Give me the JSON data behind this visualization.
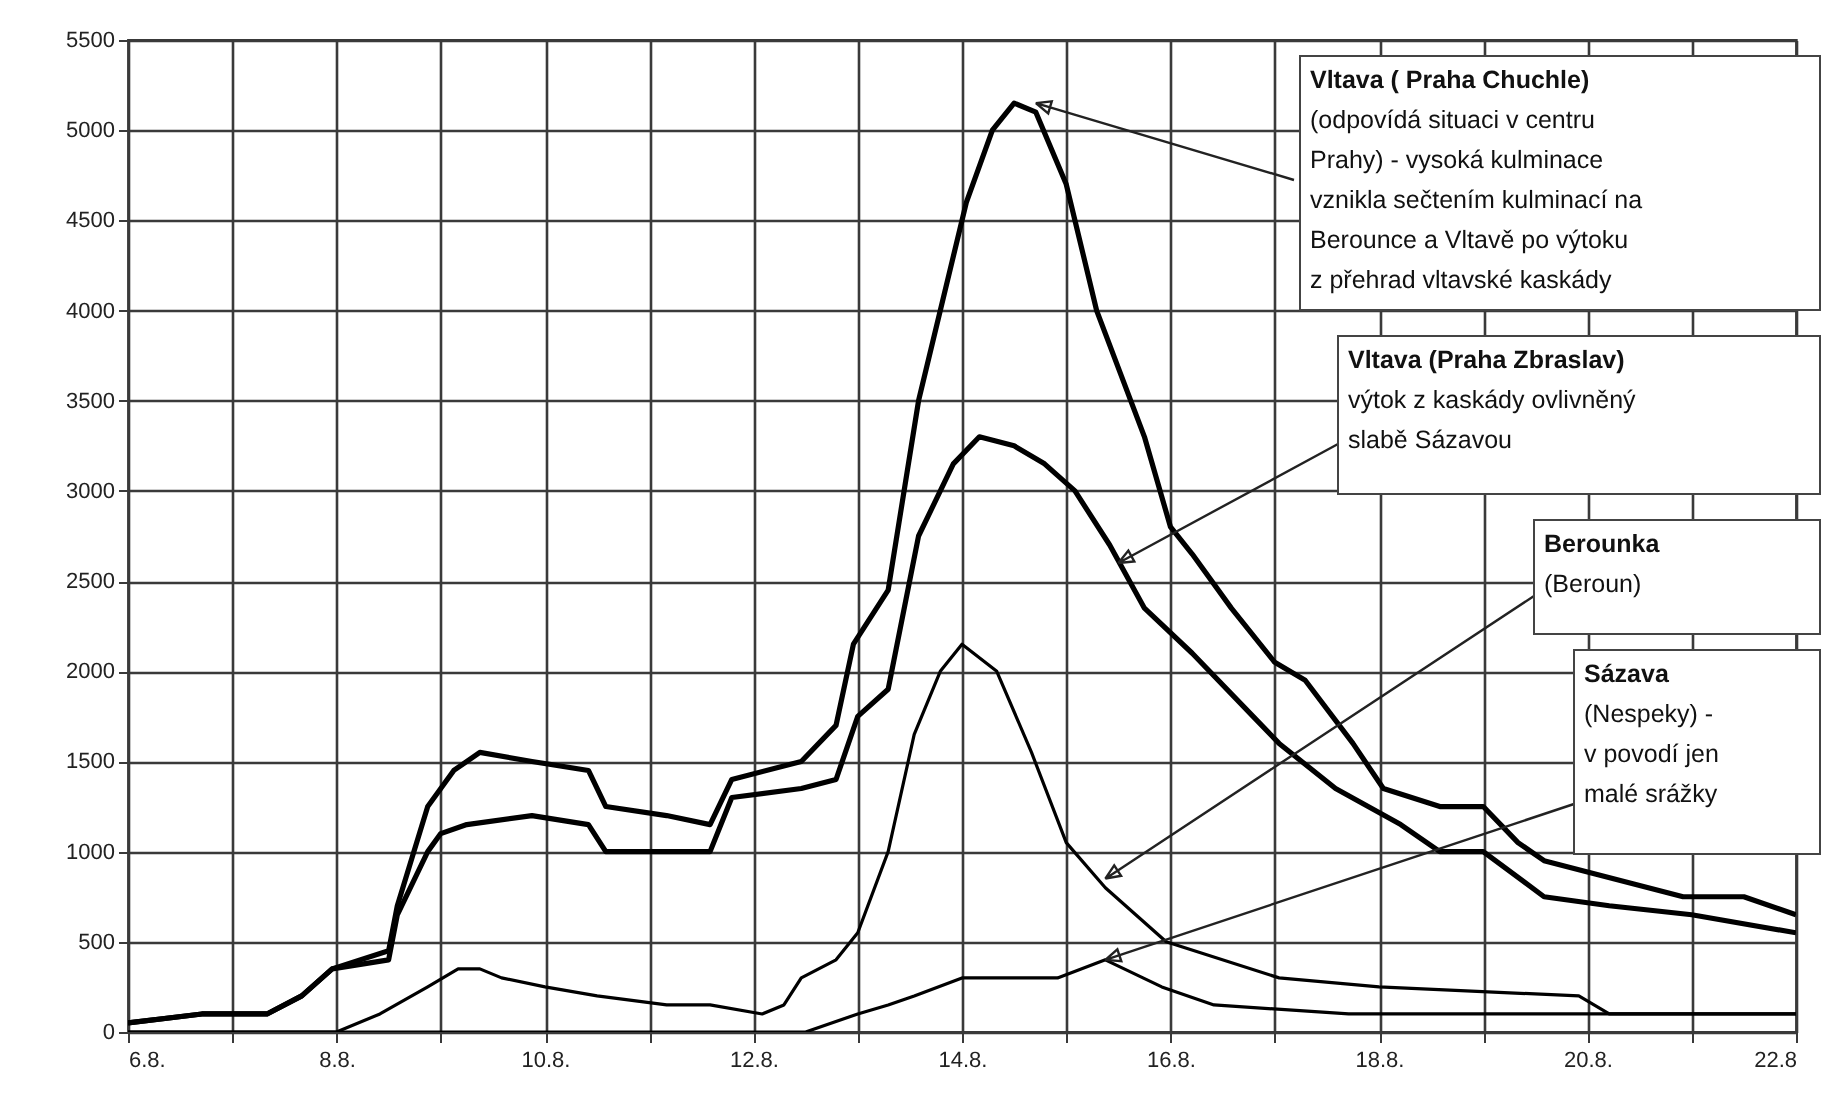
{
  "chart_data": {
    "type": "line",
    "xlim": [
      "--08-06",
      "--08-22"
    ],
    "ylim": [
      0,
      5500
    ],
    "xticks": [
      {
        "value": "--08-06",
        "label": "6.8."
      },
      {
        "value": "--08-07",
        "label": null
      },
      {
        "value": "--08-08",
        "label": "8.8."
      },
      {
        "value": "--08-09",
        "label": null
      },
      {
        "value": "--08-10",
        "label": "10.8."
      },
      {
        "value": "--08-11",
        "label": null
      },
      {
        "value": "--08-12",
        "label": "12.8."
      },
      {
        "value": "--08-13",
        "label": null
      },
      {
        "value": "--08-14",
        "label": "14.8."
      },
      {
        "value": "--08-15",
        "label": null
      },
      {
        "value": "--08-16",
        "label": "16.8."
      },
      {
        "value": "--08-17",
        "label": null
      },
      {
        "value": "--08-18",
        "label": "18.8."
      },
      {
        "value": "--08-19",
        "label": null
      },
      {
        "value": "--08-20",
        "label": "20.8."
      },
      {
        "value": "--08-21",
        "label": null
      },
      {
        "value": "--08-22",
        "label": "22.8"
      }
    ],
    "yticks": [
      0,
      500,
      1000,
      1500,
      2000,
      2500,
      3000,
      3500,
      4000,
      4500,
      5000,
      5500
    ],
    "grid": true,
    "marker": "none",
    "line_style": "solid",
    "series": [
      {
        "color": "#000000",
        "x": [
          "--08-06",
          "--08-06T17:00",
          "--08-07",
          "--08-07T08:00",
          "--08-07T16:00",
          "--08-07T23:00",
          "--08-08T12:00",
          "--08-08T14:00",
          "--08-08T21:00",
          "--08-09T03:00",
          "--08-09T09:00",
          "--08-09T21:00",
          "--08-10T10:00",
          "--08-10T14:00",
          "--08-11T04:00",
          "--08-11T14:00",
          "--08-11T19:00",
          "--08-12T11:00",
          "--08-12T19:00",
          "--08-12T23:00",
          "--08-13T07:00",
          "--08-13T14:00",
          "--08-14T01:00",
          "--08-14T07:00",
          "--08-14T12:00",
          "--08-14T17:00",
          "--08-15",
          "--08-15T07:00",
          "--08-15T18:00",
          "--08-16",
          "--08-16T05:00",
          "--08-16T14:00",
          "--08-17",
          "--08-17T07:00",
          "--08-17T18:00",
          "--08-18T01:00",
          "--08-18T14:00",
          "--08-19",
          "--08-19T08:00",
          "--08-19T14:00",
          "--08-20T06:00",
          "--08-20T22:00",
          "--08-21T12:00",
          "--08-22"
        ],
        "values": [
          50,
          100,
          100,
          100,
          200,
          350,
          450,
          700,
          1250,
          1450,
          1550,
          1500,
          1450,
          1250,
          1200,
          1150,
          1400,
          1500,
          1700,
          2150,
          2450,
          3500,
          4600,
          5000,
          5150,
          5100,
          4700,
          4000,
          3300,
          2800,
          2650,
          2350,
          2050,
          1950,
          1600,
          1350,
          1250,
          1250,
          1050,
          950,
          850,
          750,
          750,
          650
        ]
      },
      {
        "color": "#000000",
        "x": [
          "--08-06",
          "--08-06T17:00",
          "--08-07",
          "--08-07T08:00",
          "--08-07T16:00",
          "--08-07T23:00",
          "--08-08T12:00",
          "--08-08T14:00",
          "--08-08T21:00",
          "--08-09",
          "--08-09T06:00",
          "--08-09T21:00",
          "--08-10T10:00",
          "--08-10T14:00",
          "--08-11T04:00",
          "--08-11T14:00",
          "--08-11T19:00",
          "--08-12T11:00",
          "--08-12T19:00",
          "--08-13",
          "--08-13T07:00",
          "--08-13T14:00",
          "--08-13T22:00",
          "--08-14T04:00",
          "--08-14T12:00",
          "--08-14T19:00",
          "--08-15T02:00",
          "--08-15T10:00",
          "--08-15T18:00",
          "--08-16T05:00",
          "--08-16T19:00",
          "--08-17T01:00",
          "--08-17T14:00",
          "--08-18T05:00",
          "--08-18T14:00",
          "--08-19",
          "--08-19T14:00",
          "--08-20T05:00",
          "--08-21",
          "--08-22"
        ],
        "values": [
          50,
          100,
          100,
          100,
          200,
          350,
          400,
          650,
          1000,
          1100,
          1150,
          1200,
          1150,
          1000,
          1000,
          1000,
          1300,
          1350,
          1400,
          1750,
          1900,
          2750,
          3150,
          3300,
          3250,
          3150,
          3000,
          2700,
          2350,
          2100,
          1750,
          1600,
          1350,
          1150,
          1000,
          1000,
          750,
          700,
          650,
          550
        ]
      },
      {
        "color": "#000000",
        "x": [
          "--08-06",
          "--08-08",
          "--08-08T10:00",
          "--08-08T21:00",
          "--08-09T04:00",
          "--08-09T09:00",
          "--08-09T14:00",
          "--08-10",
          "--08-10T12:00",
          "--08-11T04:00",
          "--08-11T14:00",
          "--08-12T02:00",
          "--08-12T07:00",
          "--08-12T11:00",
          "--08-12T19:00",
          "--08-13",
          "--08-13T07:00",
          "--08-13T13:00",
          "--08-13T19:00",
          "--08-14",
          "--08-14T08:00",
          "--08-14T16:00",
          "--08-15",
          "--08-15T09:00",
          "--08-15T23:00",
          "--08-17T01:00",
          "--08-18",
          "--08-19T22:00",
          "--08-20T05:00",
          "--08-22"
        ],
        "values": [
          0,
          0,
          100,
          250,
          350,
          350,
          300,
          250,
          200,
          150,
          150,
          100,
          150,
          300,
          400,
          550,
          1000,
          1650,
          2000,
          2150,
          2000,
          1550,
          1050,
          800,
          500,
          300,
          250,
          200,
          100,
          100
        ]
      },
      {
        "color": "#000000",
        "x": [
          "--08-06",
          "--08-12T02:00",
          "--08-12T12:00",
          "--08-13",
          "--08-13T07:00",
          "--08-13T13:00",
          "--08-14",
          "--08-14T22:00",
          "--08-15T09:00",
          "--08-15T22:00",
          "--08-16T10:00",
          "--08-17T17:00",
          "--08-19T14:00",
          "--08-22"
        ],
        "values": [
          0,
          0,
          0,
          100,
          150,
          200,
          300,
          300,
          400,
          250,
          150,
          100,
          100,
          100
        ]
      }
    ],
    "annotations": [
      {
        "text": "Vltava ( Praha Chuchle)\n(odpovídá situaci v centru\nPrahy)  - vysoká kulminace\nvznikla sečtením kulminací na\nBerounce a Vltavě po výtoku\nz přehrad vltavské kaskády",
        "x": "--08-14T17:00",
        "y": 5150
      },
      {
        "text": "Vltava (Praha Zbraslav)\nvýtok z kaskády ovlivněný\nslabě Sázavou",
        "x": "--08-15T12:00",
        "y": 2600
      },
      {
        "text": "Berounka\n(Beroun)",
        "x": "--08-15T09:00",
        "y": 850
      },
      {
        "text": "Sázava\n(Nespeky) -\nv povodí jen\nmalé srážky",
        "x": "--08-15T09:00",
        "y": 400
      }
    ]
  }
}
